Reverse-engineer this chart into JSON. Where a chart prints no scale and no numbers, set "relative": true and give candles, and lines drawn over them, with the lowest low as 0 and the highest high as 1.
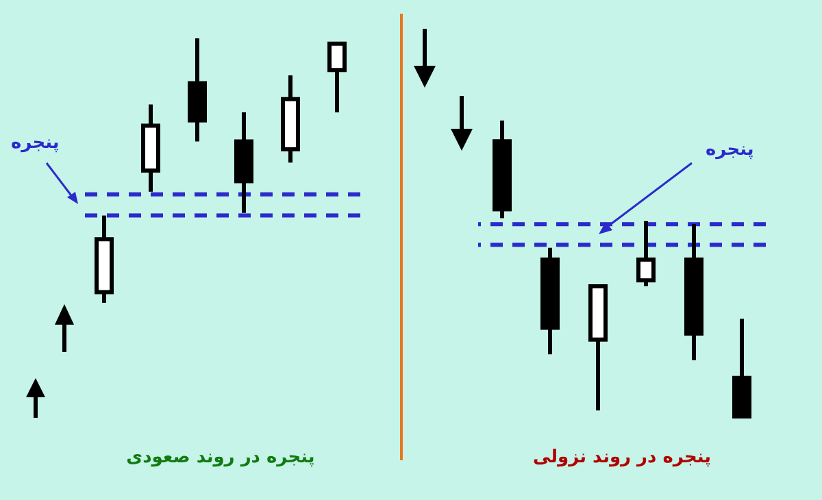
{
  "chart_data": [
    {
      "type": "candlestick",
      "title": "پنجره در روند صعودی",
      "relative": true,
      "categories": [
        null,
        null,
        null,
        null,
        null,
        null
      ],
      "ohlc": [
        [
          0.04,
          0.33,
          0,
          0.24
        ],
        [
          0.5,
          0.75,
          0.42,
          0.67
        ],
        [
          0.83,
          1,
          0.61,
          0.69
        ],
        [
          0.61,
          0.72,
          0.34,
          0.46
        ],
        [
          0.58,
          0.86,
          0.53,
          0.77
        ],
        [
          0.88,
          0.98,
          0.72,
          0.98
        ]
      ],
      "ref_lines": [
        {
          "axis": "y",
          "value": 0.41,
          "color": "#2b2bcc",
          "line_style": "dashed"
        },
        {
          "axis": "y",
          "value": 0.33,
          "color": "#2b2bcc",
          "line_style": "dashed"
        }
      ],
      "annotations": [
        "پنجره"
      ]
    },
    {
      "type": "candlestick",
      "title": "پنجره در روند نزولی",
      "relative": true,
      "categories": [
        null,
        null,
        null,
        null,
        null,
        null
      ],
      "ohlc": [
        [
          0.93,
          1,
          0.67,
          0.7
        ],
        [
          0.53,
          0.57,
          0.21,
          0.3
        ],
        [
          0.26,
          0.44,
          0.02,
          0.44
        ],
        [
          0.46,
          0.66,
          0.44,
          0.53
        ],
        [
          0.53,
          0.65,
          0.19,
          0.28
        ],
        [
          0.13,
          0.33,
          0,
          0
        ]
      ],
      "ref_lines": [
        {
          "axis": "y",
          "value": 0.65,
          "color": "#2b2bcc",
          "line_style": "dashed"
        },
        {
          "axis": "y",
          "value": 0.58,
          "color": "#2b2bcc",
          "line_style": "dashed"
        }
      ],
      "annotations": [
        "پنجره"
      ]
    }
  ]
}
